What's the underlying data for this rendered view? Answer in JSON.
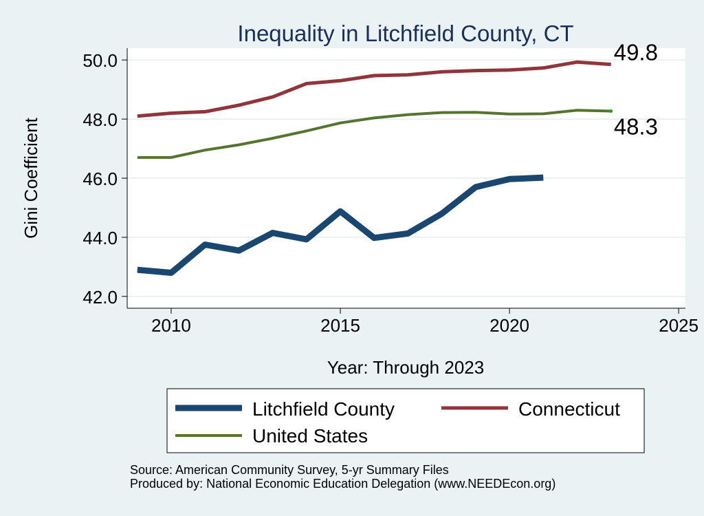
{
  "chart_data": {
    "type": "line",
    "title": "Inequality in Litchfield County, CT",
    "xlabel": "Year: Through 2023",
    "ylabel": "Gini Coefficient",
    "xlim": [
      2008.7,
      2025.2
    ],
    "ylim": [
      41.6,
      50.4
    ],
    "x_ticks": [
      2010,
      2015,
      2020,
      2025
    ],
    "y_ticks": [
      42.0,
      44.0,
      46.0,
      48.0,
      50.0
    ],
    "y_tick_labels": [
      "42.0",
      "44.0",
      "46.0",
      "48.0",
      "50.0"
    ],
    "grid": true,
    "series": [
      {
        "name": "Litchfield County",
        "color": "#1a476f",
        "x": [
          2009,
          2010,
          2011,
          2012,
          2013,
          2014,
          2015,
          2016,
          2017,
          2018,
          2019,
          2020,
          2021
        ],
        "values": [
          42.9,
          42.8,
          43.75,
          43.55,
          44.15,
          43.93,
          44.88,
          43.98,
          44.13,
          44.8,
          45.7,
          45.97,
          46.02
        ]
      },
      {
        "name": "Connecticut",
        "color": "#90353b",
        "x": [
          2009,
          2010,
          2011,
          2012,
          2013,
          2014,
          2015,
          2016,
          2017,
          2018,
          2019,
          2020,
          2021,
          2022,
          2023
        ],
        "values": [
          48.1,
          48.2,
          48.25,
          48.47,
          48.75,
          49.2,
          49.3,
          49.47,
          49.5,
          49.6,
          49.64,
          49.66,
          49.73,
          49.93,
          49.85
        ],
        "end_label": "49.8"
      },
      {
        "name": "United States",
        "color": "#55752f",
        "x": [
          2009,
          2010,
          2011,
          2012,
          2013,
          2014,
          2015,
          2016,
          2017,
          2018,
          2019,
          2020,
          2021,
          2022,
          2023
        ],
        "values": [
          46.7,
          46.7,
          46.95,
          47.13,
          47.35,
          47.6,
          47.87,
          48.04,
          48.15,
          48.22,
          48.23,
          48.17,
          48.18,
          48.3,
          48.27
        ],
        "end_label": "48.3"
      }
    ],
    "legend": {
      "placement": "bottom",
      "entries": [
        "Litchfield County",
        "Connecticut",
        "United States"
      ]
    },
    "notes": [
      "Source: American Community Survey, 5-yr Summary Files",
      "Produced by: National Economic Education Delegation (www.NEEDEcon.org)"
    ]
  }
}
